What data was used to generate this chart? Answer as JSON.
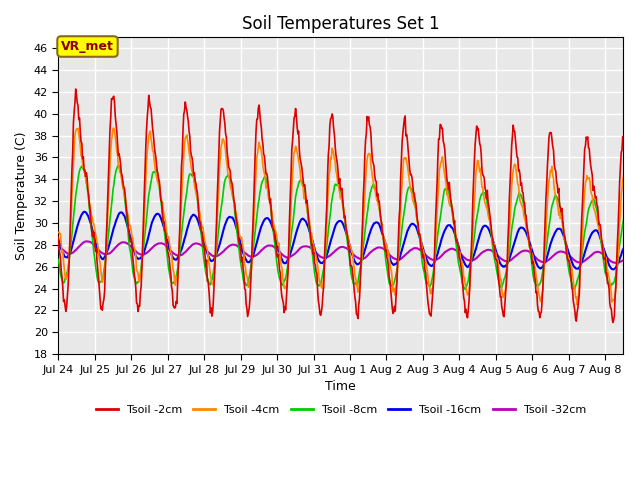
{
  "title": "Soil Temperatures Set 1",
  "xlabel": "Time",
  "ylabel": "Soil Temperature (C)",
  "ylim": [
    18,
    47
  ],
  "yticks": [
    18,
    20,
    22,
    24,
    26,
    28,
    30,
    32,
    34,
    36,
    38,
    40,
    42,
    44,
    46
  ],
  "background_color": "#e8e8e8",
  "grid_color": "#ffffff",
  "annotation_text": "VR_met",
  "annotation_box_color": "#ffff00",
  "annotation_box_edge": "#8B6914",
  "x_tick_labels": [
    "Jul 24",
    "Jul 25",
    "Jul 26",
    "Jul 27",
    "Jul 28",
    "Jul 29",
    "Jul 30",
    "Jul 31",
    "Aug 1",
    "Aug 2",
    "Aug 3",
    "Aug 4",
    "Aug 5",
    "Aug 6",
    "Aug 7",
    "Aug 8"
  ],
  "series": {
    "Tsoil -2cm": {
      "color": "#dd0000",
      "lw": 1.2
    },
    "Tsoil -4cm": {
      "color": "#ff8800",
      "lw": 1.2
    },
    "Tsoil -8cm": {
      "color": "#00cc00",
      "lw": 1.2
    },
    "Tsoil -16cm": {
      "color": "#0000ee",
      "lw": 1.5
    },
    "Tsoil -32cm": {
      "color": "#bb00bb",
      "lw": 1.5
    }
  }
}
